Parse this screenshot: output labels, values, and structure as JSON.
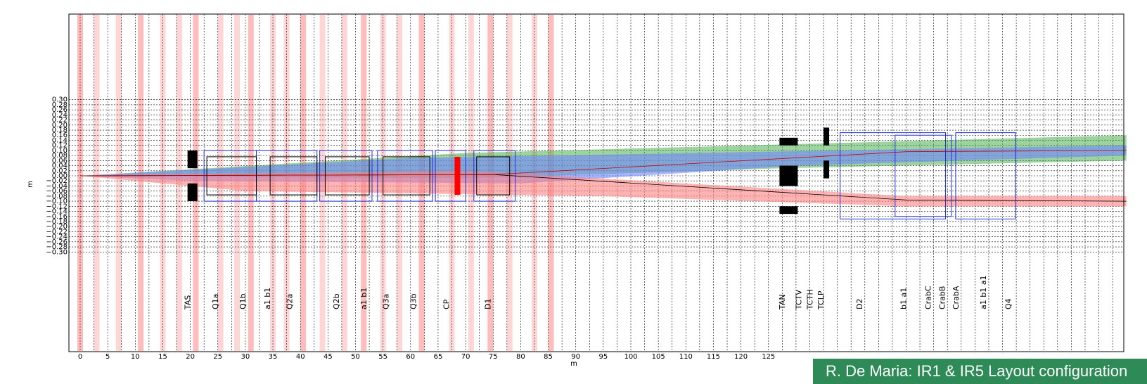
{
  "figure": {
    "xlabel": "m",
    "ylabel": "m",
    "x_ticks": [
      0,
      5,
      10,
      15,
      20,
      25,
      30,
      35,
      40,
      45,
      50,
      55,
      60,
      65,
      70,
      75,
      80,
      85,
      90,
      95,
      100,
      105,
      110,
      115,
      120,
      125
    ],
    "y_ticks": [
      "0.30",
      "0.28",
      "0.26",
      "0.24",
      "0.22",
      "0.20",
      "0.18",
      "0.16",
      "0.14",
      "0.12",
      "0.10",
      "0.08",
      "0.06",
      "0.04",
      "0.02",
      "0.00",
      "−0.02",
      "−0.04",
      "−0.06",
      "−0.08",
      "−0.10",
      "−0.12",
      "−0.14",
      "−0.16",
      "−0.18",
      "−0.20",
      "−0.22",
      "−0.24",
      "−0.26",
      "−0.28",
      "−0.30"
    ],
    "grid": true,
    "colors": {
      "beam_red": "#ff8080",
      "beam_blue": "#6f86ff",
      "beam_green": "#4caf50",
      "frame_blue": "#1f2fd0",
      "stripe": "#ffd6d6",
      "magnet": "#000000"
    }
  },
  "element_labels": [
    {
      "id": "tas",
      "text": "TAS",
      "x": 20
    },
    {
      "id": "q1a",
      "text": "Q1a",
      "x": 25
    },
    {
      "id": "q1b",
      "text": "Q1b",
      "x": 30
    },
    {
      "id": "a1b1-1",
      "text": "a1 b1",
      "x": 34.5
    },
    {
      "id": "q2a",
      "text": "Q2a",
      "x": 38.5
    },
    {
      "id": "q2b",
      "text": "Q2b",
      "x": 47
    },
    {
      "id": "a1b1-2",
      "text": "a1 b1",
      "x": 52
    },
    {
      "id": "q3a",
      "text": "Q3a",
      "x": 56
    },
    {
      "id": "q3b",
      "text": "Q3b",
      "x": 61
    },
    {
      "id": "cp",
      "text": "CP",
      "x": 67
    },
    {
      "id": "d1",
      "text": "D1",
      "x": 74.5
    },
    {
      "id": "tan",
      "text": "TAN",
      "x": 128
    },
    {
      "id": "tctv",
      "text": "TCTV",
      "x": 131
    },
    {
      "id": "tcth",
      "text": "TCTH",
      "x": 133
    },
    {
      "id": "tclp",
      "text": "TCLP",
      "x": 135
    },
    {
      "id": "d2",
      "text": "D2",
      "x": 142
    },
    {
      "id": "b1a1",
      "text": "b1 a1",
      "x": 150
    },
    {
      "id": "crabc",
      "text": "CrabC",
      "x": 154.5
    },
    {
      "id": "crabb",
      "text": "CrabB",
      "x": 157
    },
    {
      "id": "craba",
      "text": "CrabA",
      "x": 159.5
    },
    {
      "id": "a1b1a1",
      "text": "a1 b1 a1",
      "x": 164.5
    },
    {
      "id": "q4",
      "text": "Q4",
      "x": 169
    }
  ],
  "caption": "R. De Maria: IR1 & IR5 Layout configuration"
}
